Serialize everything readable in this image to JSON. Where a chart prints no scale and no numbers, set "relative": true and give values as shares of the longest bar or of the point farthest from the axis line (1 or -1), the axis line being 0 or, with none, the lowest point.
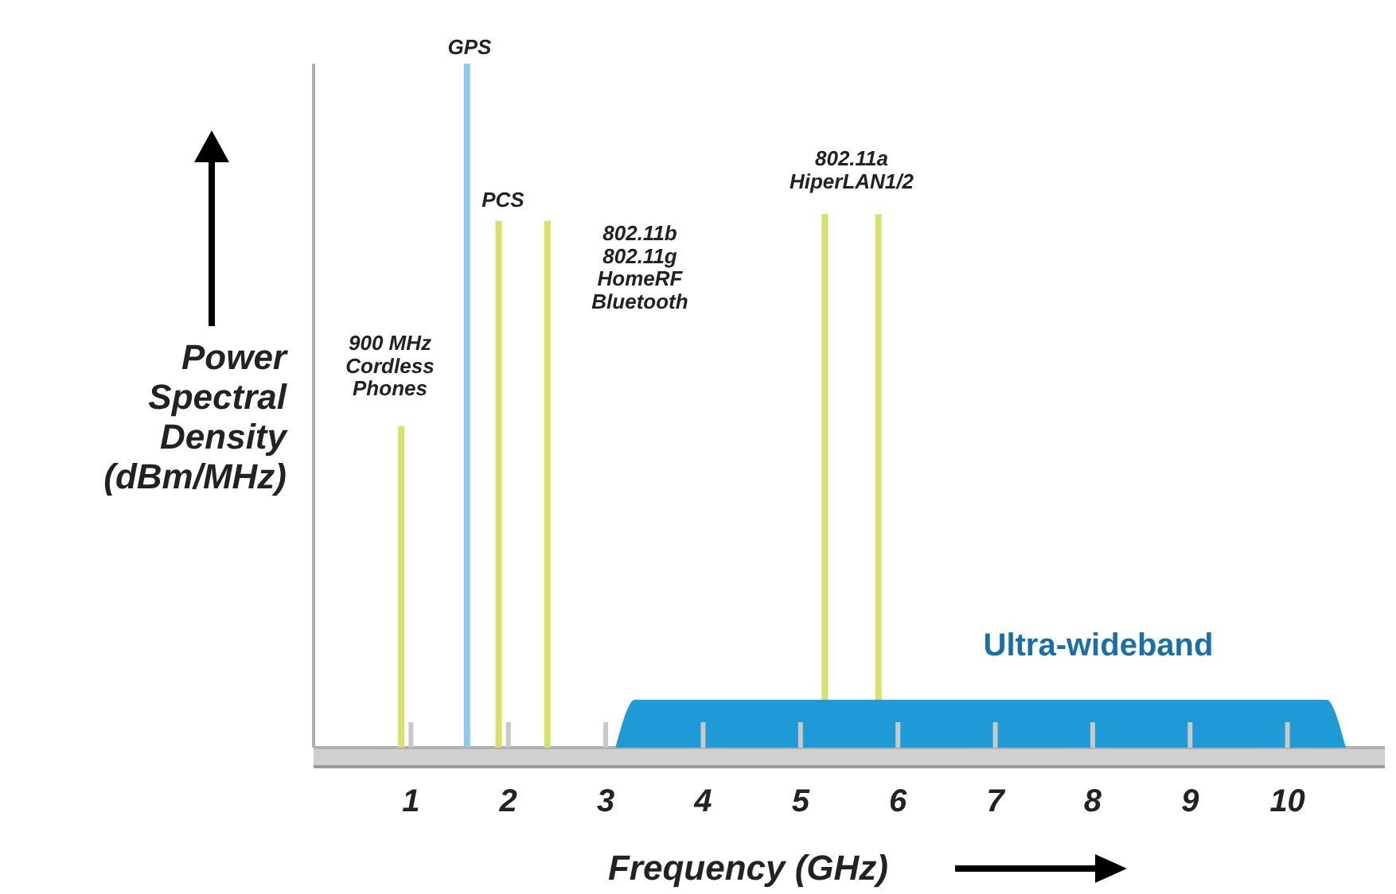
{
  "chart_data": {
    "type": "bar",
    "relative": true,
    "xlabel": "Frequency (GHz)",
    "ylabel": "Power\nSpectral\nDensity\n(dBm/MHz)",
    "xlim": [
      0,
      11
    ],
    "xticks": [
      1,
      2,
      3,
      4,
      5,
      6,
      7,
      8,
      9,
      10
    ],
    "grid": false,
    "series": [
      {
        "x": [
          0.9,
          1.9,
          2.4,
          5.25,
          5.8
        ],
        "values": [
          0.47,
          0.77,
          0.77,
          0.78,
          0.78
        ],
        "color": "#d6e06a"
      },
      {
        "type": "bar",
        "x": [
          1.575
        ],
        "values": [
          1
        ],
        "color": "#8cc8e8"
      },
      {
        "type": "area",
        "x": [
          3.1,
          3.3,
          10.4,
          10.6
        ],
        "values": [
          0,
          0.07,
          0.07,
          0
        ],
        "color": "#1e9ad6"
      }
    ],
    "annotations": [
      "GPS",
      "900 MHz\nCordless\nPhones",
      "PCS",
      "802.11b\n802.11g\nHomeRF\nBluetooth",
      "802.11a\nHiperLAN1/2",
      "Ultra-wideband"
    ]
  }
}
